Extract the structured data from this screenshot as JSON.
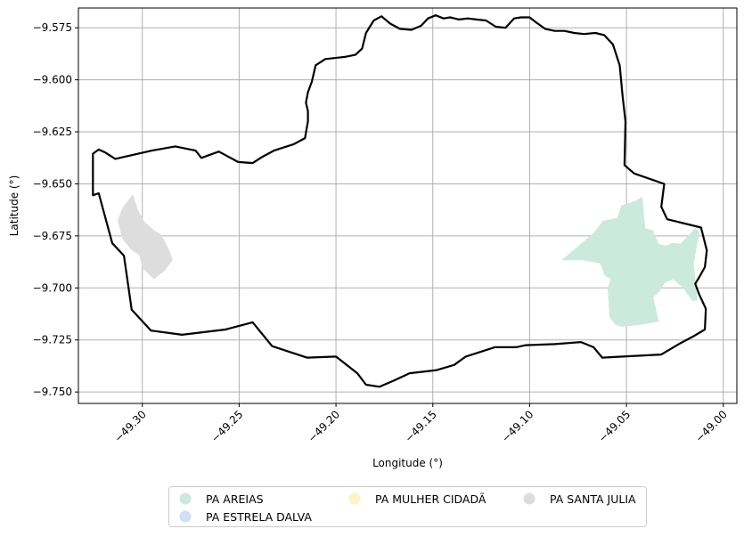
{
  "chart_data": {
    "type": "map",
    "xlabel": "Longitude (°)",
    "ylabel": "Latitude (°)",
    "xlim": [
      -49.333,
      -48.993
    ],
    "ylim": [
      -9.7555,
      -9.5655
    ],
    "grid": true,
    "xticks": [
      -49.3,
      -49.25,
      -49.2,
      -49.15,
      -49.1,
      -49.05,
      -49.0
    ],
    "xtick_labels": [
      "−49.30",
      "−49.25",
      "−49.20",
      "−49.15",
      "−49.10",
      "−49.05",
      "−49.00"
    ],
    "yticks": [
      -9.575,
      -9.6,
      -9.625,
      -9.65,
      -9.675,
      -9.7,
      -9.725,
      -9.75
    ],
    "ytick_labels": [
      "−9.575",
      "−9.600",
      "−9.625",
      "−9.650",
      "−9.675",
      "−9.700",
      "−9.725",
      "−9.750"
    ],
    "legend_position": "bottom-center",
    "boundary": {
      "color": "#000000",
      "coords": [
        [
          -49.1845,
          -9.5775
        ],
        [
          -49.1825,
          -9.5745
        ],
        [
          -49.1805,
          -9.5715
        ],
        [
          -49.1765,
          -9.5695
        ],
        [
          -49.172,
          -9.573
        ],
        [
          -49.167,
          -9.5755
        ],
        [
          -49.161,
          -9.576
        ],
        [
          -49.156,
          -9.574
        ],
        [
          -49.1525,
          -9.5705
        ],
        [
          -49.1485,
          -9.569
        ],
        [
          -49.1445,
          -9.5705
        ],
        [
          -49.141,
          -9.57
        ],
        [
          -49.1365,
          -9.571
        ],
        [
          -49.132,
          -9.5705
        ],
        [
          -49.1275,
          -9.571
        ],
        [
          -49.1225,
          -9.5715
        ],
        [
          -49.1175,
          -9.5745
        ],
        [
          -49.1125,
          -9.575
        ],
        [
          -49.108,
          -9.5705
        ],
        [
          -49.1045,
          -9.57
        ],
        [
          -49.1,
          -9.57
        ],
        [
          -49.0965,
          -9.5725
        ],
        [
          -49.092,
          -9.5755
        ],
        [
          -49.087,
          -9.5765
        ],
        [
          -49.082,
          -9.5765
        ],
        [
          -49.077,
          -9.5775
        ],
        [
          -49.072,
          -9.578
        ],
        [
          -49.066,
          -9.5775
        ],
        [
          -49.0615,
          -9.5785
        ],
        [
          -49.057,
          -9.583
        ],
        [
          -49.0535,
          -9.593
        ],
        [
          -49.052,
          -9.608
        ],
        [
          -49.0505,
          -9.62
        ],
        [
          -49.051,
          -9.641
        ],
        [
          -49.046,
          -9.645
        ],
        [
          -49.0305,
          -9.65
        ],
        [
          -49.032,
          -9.661
        ],
        [
          -49.029,
          -9.667
        ],
        [
          -49.0115,
          -9.671
        ],
        [
          -49.0085,
          -9.682
        ],
        [
          -49.0095,
          -9.69
        ],
        [
          -49.0125,
          -9.695
        ],
        [
          -49.0145,
          -9.698
        ],
        [
          -49.0125,
          -9.703
        ],
        [
          -49.009,
          -9.71
        ],
        [
          -49.0095,
          -9.72
        ],
        [
          -49.015,
          -9.723
        ],
        [
          -49.023,
          -9.727
        ],
        [
          -49.032,
          -9.732
        ],
        [
          -49.052,
          -9.733
        ],
        [
          -49.0625,
          -9.7335
        ],
        [
          -49.067,
          -9.7285
        ],
        [
          -49.0735,
          -9.726
        ],
        [
          -49.087,
          -9.727
        ],
        [
          -49.102,
          -9.7275
        ],
        [
          -49.107,
          -9.7285
        ],
        [
          -49.118,
          -9.7285
        ],
        [
          -49.133,
          -9.733
        ],
        [
          -49.139,
          -9.737
        ],
        [
          -49.148,
          -9.7395
        ],
        [
          -49.162,
          -9.741
        ],
        [
          -49.17,
          -9.7445
        ],
        [
          -49.1775,
          -9.7475
        ],
        [
          -49.1845,
          -9.7465
        ],
        [
          -49.189,
          -9.741
        ],
        [
          -49.2,
          -9.733
        ],
        [
          -49.215,
          -9.7335
        ],
        [
          -49.233,
          -9.728
        ],
        [
          -49.243,
          -9.7165
        ],
        [
          -49.257,
          -9.72
        ],
        [
          -49.2795,
          -9.7225
        ],
        [
          -49.2955,
          -9.7205
        ],
        [
          -49.3055,
          -9.7105
        ],
        [
          -49.3095,
          -9.6845
        ],
        [
          -49.3155,
          -9.6785
        ],
        [
          -49.3225,
          -9.6545
        ],
        [
          -49.3255,
          -9.6555
        ],
        [
          -49.3255,
          -9.6355
        ],
        [
          -49.3225,
          -9.6335
        ],
        [
          -49.319,
          -9.635
        ],
        [
          -49.314,
          -9.638
        ],
        [
          -49.295,
          -9.634
        ],
        [
          -49.283,
          -9.632
        ],
        [
          -49.2725,
          -9.634
        ],
        [
          -49.2695,
          -9.6375
        ],
        [
          -49.2605,
          -9.6345
        ],
        [
          -49.2505,
          -9.6395
        ],
        [
          -49.243,
          -9.64
        ],
        [
          -49.238,
          -9.637
        ],
        [
          -49.232,
          -9.634
        ],
        [
          -49.222,
          -9.631
        ],
        [
          -49.216,
          -9.628
        ],
        [
          -49.2145,
          -9.62
        ],
        [
          -49.2145,
          -9.615
        ],
        [
          -49.2155,
          -9.611
        ],
        [
          -49.2145,
          -9.606
        ],
        [
          -49.2125,
          -9.601
        ],
        [
          -49.2105,
          -9.593
        ],
        [
          -49.2055,
          -9.59
        ],
        [
          -49.1955,
          -9.589
        ],
        [
          -49.19,
          -9.588
        ],
        [
          -49.1865,
          -9.585
        ],
        [
          -49.1845,
          -9.5775
        ]
      ]
    },
    "regions": [
      {
        "name": "PA AREIAS",
        "color": "#cce9dd",
        "coords": [
          [
            -49.083,
            -9.6865
          ],
          [
            -49.0665,
            -9.6735
          ],
          [
            -49.062,
            -9.668
          ],
          [
            -49.0545,
            -9.6665
          ],
          [
            -49.0525,
            -9.6605
          ],
          [
            -49.0455,
            -9.6585
          ],
          [
            -49.042,
            -9.6565
          ],
          [
            -49.0405,
            -9.6715
          ],
          [
            -49.0365,
            -9.6725
          ],
          [
            -49.0335,
            -9.679
          ],
          [
            -49.0295,
            -9.68
          ],
          [
            -49.0265,
            -9.6785
          ],
          [
            -49.022,
            -9.679
          ],
          [
            -49.0145,
            -9.6715
          ],
          [
            -49.0125,
            -9.673
          ],
          [
            -49.0155,
            -9.688
          ],
          [
            -49.0135,
            -9.706
          ],
          [
            -49.016,
            -9.706
          ],
          [
            -49.0205,
            -9.7
          ],
          [
            -49.026,
            -9.6955
          ],
          [
            -49.0305,
            -9.6975
          ],
          [
            -49.033,
            -9.7015
          ],
          [
            -49.0365,
            -9.7045
          ],
          [
            -49.0335,
            -9.716
          ],
          [
            -49.0425,
            -9.7175
          ],
          [
            -49.0525,
            -9.7185
          ],
          [
            -49.0555,
            -9.7175
          ],
          [
            -49.0585,
            -9.714
          ],
          [
            -49.0595,
            -9.7005
          ],
          [
            -49.058,
            -9.6955
          ],
          [
            -49.061,
            -9.694
          ],
          [
            -49.0635,
            -9.688
          ],
          [
            -49.073,
            -9.6865
          ],
          [
            -49.083,
            -9.6865
          ]
        ]
      },
      {
        "name": "PA ESTRELA DALVA",
        "color": "#d5def0",
        "coords": []
      },
      {
        "name": "PA MULHER CIDADÃ",
        "color": "#fff2c3",
        "coords": []
      },
      {
        "name": "PA SANTA JULIA",
        "color": "#dddddd",
        "coords": [
          [
            -49.305,
            -9.6555
          ],
          [
            -49.3025,
            -9.6625
          ],
          [
            -49.299,
            -9.6685
          ],
          [
            -49.294,
            -9.6725
          ],
          [
            -49.2905,
            -9.6745
          ],
          [
            -49.287,
            -9.6805
          ],
          [
            -49.2845,
            -9.6865
          ],
          [
            -49.2885,
            -9.6915
          ],
          [
            -49.294,
            -9.6955
          ],
          [
            -49.2995,
            -9.6905
          ],
          [
            -49.3015,
            -9.684
          ],
          [
            -49.3055,
            -9.6815
          ],
          [
            -49.31,
            -9.6765
          ],
          [
            -49.3125,
            -9.6675
          ],
          [
            -49.31,
            -9.6615
          ],
          [
            -49.305,
            -9.6555
          ]
        ]
      }
    ],
    "legend": [
      {
        "label": "PA AREIAS",
        "color": "#cce9dd"
      },
      {
        "label": "PA ESTRELA DALVA",
        "color": "#d5def0"
      },
      {
        "label": "PA MULHER CIDADÃ",
        "color": "#fff2c3"
      },
      {
        "label": "PA SANTA JULIA",
        "color": "#dddddd"
      }
    ]
  }
}
